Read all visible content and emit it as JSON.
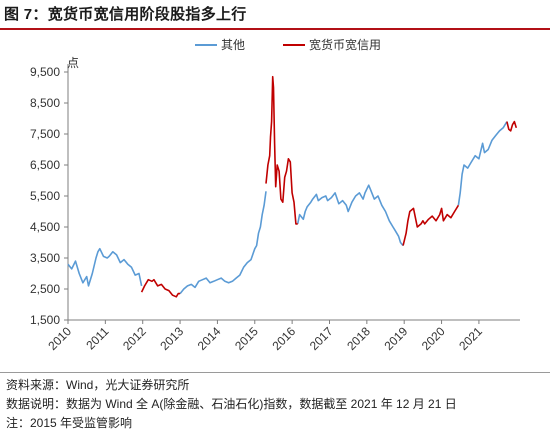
{
  "title": "图 7：宽货币宽信用阶段股指多上行",
  "notes": {
    "source": "资料来源：Wind，光大证券研究所",
    "description": "数据说明：数据为 Wind 全 A(除金融、石油石化)指数，数据截至 2021 年 12 月 21 日",
    "remark": "注：2015 年受监管影响"
  },
  "colors": {
    "title_rule": "#b21016",
    "other": "#5b9bd5",
    "easing": "#c00000"
  },
  "chart_data": {
    "type": "line",
    "title": "",
    "xlabel": "",
    "ylabel": "点",
    "xlim": [
      2010.0,
      2022.1
    ],
    "ylim": [
      1500,
      9500
    ],
    "y_ticks": [
      "1,500",
      "2,500",
      "3,500",
      "4,500",
      "5,500",
      "6,500",
      "7,500",
      "8,500",
      "9,500"
    ],
    "y_tick_values": [
      1500,
      2500,
      3500,
      4500,
      5500,
      6500,
      7500,
      8500,
      9500
    ],
    "x_ticks": [
      "2010",
      "2011",
      "2012",
      "2013",
      "2014",
      "2015",
      "2016",
      "2017",
      "2018",
      "2019",
      "2020",
      "2021"
    ],
    "x_tick_values": [
      2010,
      2011,
      2012,
      2013,
      2014,
      2015,
      2016,
      2017,
      2018,
      2019,
      2020,
      2021
    ],
    "legend": {
      "position": "top-center"
    },
    "grid": false,
    "series": [
      {
        "name": "其他",
        "color": "#5b9bd5",
        "segments": [
          [
            [
              2010.0,
              3300
            ],
            [
              2010.1,
              3150
            ],
            [
              2010.2,
              3400
            ],
            [
              2010.3,
              3000
            ],
            [
              2010.4,
              2700
            ],
            [
              2010.5,
              2900
            ],
            [
              2010.55,
              2600
            ],
            [
              2010.65,
              3000
            ],
            [
              2010.75,
              3500
            ],
            [
              2010.8,
              3700
            ],
            [
              2010.85,
              3800
            ],
            [
              2010.95,
              3550
            ],
            [
              2011.05,
              3500
            ],
            [
              2011.1,
              3550
            ],
            [
              2011.2,
              3700
            ],
            [
              2011.3,
              3600
            ],
            [
              2011.4,
              3350
            ],
            [
              2011.5,
              3450
            ],
            [
              2011.6,
              3300
            ],
            [
              2011.7,
              3200
            ],
            [
              2011.8,
              2950
            ],
            [
              2011.9,
              3000
            ],
            [
              2011.97,
              2600
            ]
          ],
          [
            [
              2013.0,
              2350
            ],
            [
              2013.1,
              2500
            ],
            [
              2013.2,
              2600
            ],
            [
              2013.3,
              2650
            ],
            [
              2013.4,
              2550
            ],
            [
              2013.5,
              2750
            ],
            [
              2013.6,
              2800
            ],
            [
              2013.7,
              2850
            ],
            [
              2013.8,
              2700
            ],
            [
              2013.9,
              2750
            ],
            [
              2014.0,
              2800
            ],
            [
              2014.1,
              2850
            ],
            [
              2014.2,
              2750
            ],
            [
              2014.3,
              2700
            ],
            [
              2014.4,
              2750
            ],
            [
              2014.5,
              2850
            ],
            [
              2014.6,
              2950
            ],
            [
              2014.7,
              3200
            ],
            [
              2014.8,
              3350
            ],
            [
              2014.9,
              3450
            ],
            [
              2015.0,
              3800
            ],
            [
              2015.05,
              3900
            ],
            [
              2015.1,
              4300
            ],
            [
              2015.15,
              4500
            ],
            [
              2015.2,
              4900
            ],
            [
              2015.25,
              5200
            ],
            [
              2015.3,
              5650
            ]
          ],
          [
            [
              2016.15,
              4600
            ],
            [
              2016.2,
              4900
            ],
            [
              2016.3,
              4750
            ],
            [
              2016.35,
              5000
            ],
            [
              2016.4,
              5150
            ],
            [
              2016.5,
              5300
            ],
            [
              2016.55,
              5400
            ],
            [
              2016.65,
              5550
            ],
            [
              2016.7,
              5350
            ],
            [
              2016.8,
              5450
            ],
            [
              2016.9,
              5500
            ],
            [
              2016.95,
              5350
            ],
            [
              2017.05,
              5450
            ],
            [
              2017.15,
              5600
            ],
            [
              2017.25,
              5250
            ],
            [
              2017.35,
              5350
            ],
            [
              2017.45,
              5200
            ],
            [
              2017.5,
              5000
            ],
            [
              2017.6,
              5300
            ],
            [
              2017.7,
              5500
            ],
            [
              2017.8,
              5600
            ],
            [
              2017.9,
              5400
            ],
            [
              2017.95,
              5600
            ],
            [
              2018.05,
              5850
            ],
            [
              2018.1,
              5700
            ],
            [
              2018.2,
              5400
            ],
            [
              2018.3,
              5500
            ],
            [
              2018.4,
              5200
            ],
            [
              2018.5,
              5000
            ],
            [
              2018.6,
              4700
            ],
            [
              2018.7,
              4500
            ],
            [
              2018.75,
              4400
            ],
            [
              2018.85,
              4200
            ],
            [
              2018.9,
              4000
            ],
            [
              2018.97,
              3900
            ]
          ],
          [
            [
              2020.45,
              5200
            ],
            [
              2020.5,
              5600
            ],
            [
              2020.55,
              6200
            ],
            [
              2020.6,
              6500
            ],
            [
              2020.7,
              6400
            ],
            [
              2020.8,
              6600
            ],
            [
              2020.9,
              6800
            ],
            [
              2021.0,
              6700
            ],
            [
              2021.1,
              7200
            ],
            [
              2021.15,
              6900
            ],
            [
              2021.25,
              7000
            ],
            [
              2021.35,
              7300
            ],
            [
              2021.45,
              7450
            ],
            [
              2021.55,
              7600
            ],
            [
              2021.65,
              7700
            ],
            [
              2021.75,
              7900
            ]
          ]
        ]
      },
      {
        "name": "宽货币宽信用",
        "color": "#c00000",
        "segments": [
          [
            [
              2011.97,
              2400
            ],
            [
              2012.05,
              2600
            ],
            [
              2012.15,
              2800
            ],
            [
              2012.25,
              2750
            ],
            [
              2012.3,
              2800
            ],
            [
              2012.4,
              2600
            ],
            [
              2012.5,
              2650
            ],
            [
              2012.6,
              2500
            ],
            [
              2012.7,
              2450
            ],
            [
              2012.8,
              2300
            ],
            [
              2012.9,
              2250
            ],
            [
              2012.95,
              2350
            ],
            [
              2013.0,
              2350
            ]
          ],
          [
            [
              2015.3,
              5900
            ],
            [
              2015.35,
              6500
            ],
            [
              2015.4,
              6800
            ],
            [
              2015.42,
              7400
            ],
            [
              2015.45,
              7900
            ],
            [
              2015.48,
              9350
            ],
            [
              2015.5,
              9000
            ],
            [
              2015.53,
              7200
            ],
            [
              2015.56,
              5800
            ],
            [
              2015.6,
              6500
            ],
            [
              2015.65,
              6300
            ],
            [
              2015.7,
              5400
            ],
            [
              2015.75,
              5300
            ],
            [
              2015.8,
              6100
            ],
            [
              2015.85,
              6300
            ],
            [
              2015.9,
              6700
            ],
            [
              2015.95,
              6600
            ],
            [
              2016.0,
              5600
            ],
            [
              2016.05,
              5300
            ],
            [
              2016.1,
              4600
            ],
            [
              2016.15,
              4600
            ]
          ],
          [
            [
              2018.97,
              3900
            ],
            [
              2019.05,
              4300
            ],
            [
              2019.1,
              4700
            ],
            [
              2019.15,
              5000
            ],
            [
              2019.25,
              5100
            ],
            [
              2019.3,
              4800
            ],
            [
              2019.35,
              4500
            ],
            [
              2019.45,
              4600
            ],
            [
              2019.5,
              4700
            ],
            [
              2019.55,
              4600
            ],
            [
              2019.65,
              4750
            ],
            [
              2019.75,
              4850
            ],
            [
              2019.85,
              4700
            ],
            [
              2019.95,
              4900
            ],
            [
              2020.0,
              5100
            ],
            [
              2020.05,
              4700
            ],
            [
              2020.15,
              4900
            ],
            [
              2020.25,
              4800
            ],
            [
              2020.35,
              5000
            ],
            [
              2020.45,
              5200
            ]
          ],
          [
            [
              2021.75,
              7900
            ],
            [
              2021.8,
              7650
            ],
            [
              2021.85,
              7600
            ],
            [
              2021.9,
              7800
            ],
            [
              2021.95,
              7900
            ],
            [
              2022.0,
              7700
            ]
          ]
        ]
      }
    ]
  }
}
